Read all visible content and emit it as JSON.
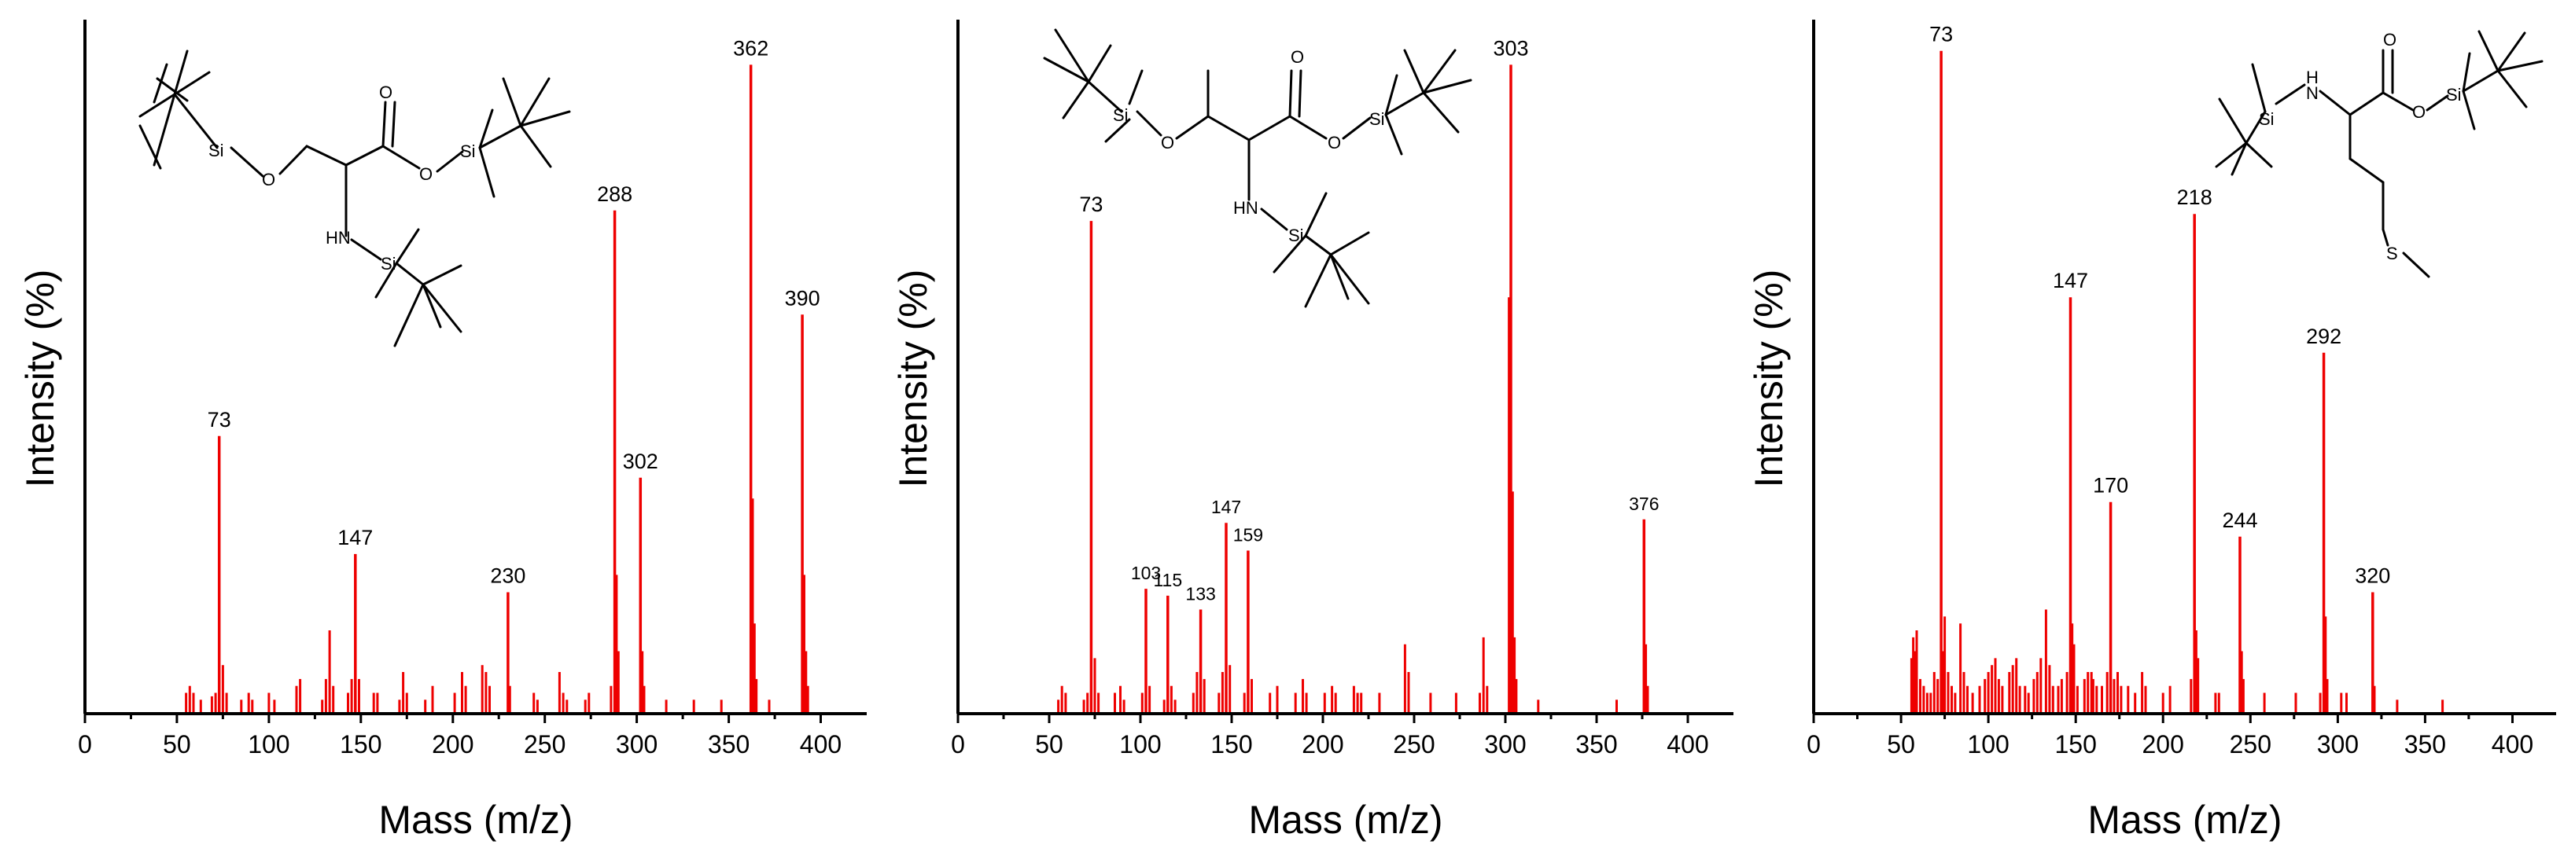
{
  "figure_title": "",
  "colors": {
    "spectrum": "#ee0000",
    "axis": "#000000"
  },
  "chart_data": [
    {
      "type": "bar",
      "title": "",
      "xlabel": "Mass (m/z)",
      "ylabel": "Intensity (%)",
      "xlim": [
        0,
        425
      ],
      "ylim": [
        0,
        100
      ],
      "x_ticks": [
        0,
        50,
        100,
        150,
        200,
        250,
        300,
        350,
        400
      ],
      "molecule_labels": [
        "Si",
        "O",
        "O",
        "Si",
        "O",
        "HN",
        "Si"
      ],
      "peaks": [
        {
          "mz": 73,
          "intensity": 40,
          "label": "73"
        },
        {
          "mz": 147,
          "intensity": 23,
          "label": "147"
        },
        {
          "mz": 230,
          "intensity": 17.5,
          "label": "230"
        },
        {
          "mz": 288,
          "intensity": 72.5,
          "label": "288"
        },
        {
          "mz": 302,
          "intensity": 34,
          "label": "302"
        },
        {
          "mz": 362,
          "intensity": 93.5,
          "label": "362"
        },
        {
          "mz": 390,
          "intensity": 57.5,
          "label": "390"
        }
      ],
      "minor_peaks": [
        [
          55,
          3
        ],
        [
          57,
          4
        ],
        [
          59,
          3
        ],
        [
          63,
          2
        ],
        [
          69,
          2.5
        ],
        [
          71,
          3
        ],
        [
          75,
          7
        ],
        [
          77,
          3
        ],
        [
          85,
          2
        ],
        [
          89,
          3
        ],
        [
          91,
          2
        ],
        [
          100,
          3
        ],
        [
          103,
          2
        ],
        [
          115,
          4
        ],
        [
          117,
          5
        ],
        [
          129,
          2
        ],
        [
          131,
          5
        ],
        [
          133,
          12
        ],
        [
          135,
          4
        ],
        [
          143,
          3
        ],
        [
          145,
          5
        ],
        [
          149,
          5
        ],
        [
          157,
          3
        ],
        [
          159,
          3
        ],
        [
          171,
          2
        ],
        [
          173,
          6
        ],
        [
          175,
          3
        ],
        [
          185,
          2
        ],
        [
          189,
          4
        ],
        [
          201,
          3
        ],
        [
          205,
          6
        ],
        [
          207,
          4
        ],
        [
          216,
          7
        ],
        [
          218,
          6
        ],
        [
          220,
          4
        ],
        [
          231,
          4
        ],
        [
          244,
          3
        ],
        [
          246,
          2
        ],
        [
          258,
          6
        ],
        [
          260,
          3
        ],
        [
          262,
          2
        ],
        [
          272,
          2
        ],
        [
          274,
          3
        ],
        [
          286,
          4
        ],
        [
          289,
          20
        ],
        [
          290,
          9
        ],
        [
          303,
          9
        ],
        [
          304,
          4
        ],
        [
          316,
          2
        ],
        [
          331,
          2
        ],
        [
          346,
          2
        ],
        [
          363,
          31
        ],
        [
          364,
          13
        ],
        [
          365,
          5
        ],
        [
          372,
          2
        ],
        [
          391,
          20
        ],
        [
          392,
          9
        ],
        [
          393,
          4
        ]
      ]
    },
    {
      "type": "bar",
      "title": "",
      "xlabel": "Mass (m/z)",
      "ylabel": "Intensity (%)",
      "xlim": [
        0,
        425
      ],
      "ylim": [
        0,
        100
      ],
      "x_ticks": [
        0,
        50,
        100,
        150,
        200,
        250,
        300,
        350,
        400
      ],
      "molecule_labels": [
        "Si",
        "O",
        "O",
        "O",
        "Si",
        "HN",
        "Si"
      ],
      "peaks": [
        {
          "mz": 73,
          "intensity": 71,
          "label": "73"
        },
        {
          "mz": 103,
          "intensity": 18,
          "label": "103"
        },
        {
          "mz": 115,
          "intensity": 17,
          "label": "115"
        },
        {
          "mz": 133,
          "intensity": 15,
          "label": "133"
        },
        {
          "mz": 147,
          "intensity": 27.5,
          "label": "147"
        },
        {
          "mz": 159,
          "intensity": 23.5,
          "label": "159"
        },
        {
          "mz": 303,
          "intensity": 93.5,
          "label": "303"
        },
        {
          "mz": 376,
          "intensity": 28,
          "label": "376"
        }
      ],
      "minor_peaks": [
        [
          55,
          2
        ],
        [
          57,
          4
        ],
        [
          59,
          3
        ],
        [
          69,
          2
        ],
        [
          71,
          3
        ],
        [
          75,
          8
        ],
        [
          77,
          3
        ],
        [
          86,
          3
        ],
        [
          89,
          4
        ],
        [
          91,
          2
        ],
        [
          101,
          3
        ],
        [
          105,
          4
        ],
        [
          113,
          2
        ],
        [
          117,
          4
        ],
        [
          119,
          2
        ],
        [
          129,
          3
        ],
        [
          131,
          6
        ],
        [
          135,
          5
        ],
        [
          143,
          3
        ],
        [
          145,
          6
        ],
        [
          149,
          7
        ],
        [
          157,
          3
        ],
        [
          161,
          5
        ],
        [
          171,
          3
        ],
        [
          175,
          4
        ],
        [
          185,
          3
        ],
        [
          189,
          5
        ],
        [
          191,
          3
        ],
        [
          201,
          3
        ],
        [
          205,
          4
        ],
        [
          207,
          3
        ],
        [
          217,
          4
        ],
        [
          219,
          3
        ],
        [
          221,
          3
        ],
        [
          231,
          3
        ],
        [
          245,
          10
        ],
        [
          247,
          6
        ],
        [
          259,
          3
        ],
        [
          273,
          3
        ],
        [
          286,
          3
        ],
        [
          288,
          11
        ],
        [
          290,
          4
        ],
        [
          302,
          60
        ],
        [
          304,
          32
        ],
        [
          305,
          11
        ],
        [
          306,
          5
        ],
        [
          318,
          2
        ],
        [
          361,
          2
        ],
        [
          377,
          10
        ],
        [
          378,
          4
        ]
      ]
    },
    {
      "type": "bar",
      "title": "",
      "xlabel": "Mass (m/z)",
      "ylabel": "Intensity (%)",
      "xlim": [
        0,
        425
      ],
      "ylim": [
        0,
        100
      ],
      "x_ticks": [
        0,
        50,
        100,
        150,
        200,
        250,
        300,
        350,
        400
      ],
      "molecule_labels": [
        "Si",
        "H",
        "N",
        "O",
        "O",
        "Si",
        "S"
      ],
      "peaks": [
        {
          "mz": 73,
          "intensity": 95.5,
          "label": "73"
        },
        {
          "mz": 147,
          "intensity": 60,
          "label": "147"
        },
        {
          "mz": 170,
          "intensity": 30.5,
          "label": "170"
        },
        {
          "mz": 218,
          "intensity": 72,
          "label": "218"
        },
        {
          "mz": 244,
          "intensity": 25.5,
          "label": "244"
        },
        {
          "mz": 292,
          "intensity": 52,
          "label": "292"
        },
        {
          "mz": 320,
          "intensity": 17.5,
          "label": "320"
        }
      ],
      "minor_peaks": [
        [
          56,
          8
        ],
        [
          57,
          11
        ],
        [
          58,
          9
        ],
        [
          59,
          12
        ],
        [
          61,
          5
        ],
        [
          63,
          4
        ],
        [
          65,
          3
        ],
        [
          67,
          3
        ],
        [
          69,
          6
        ],
        [
          71,
          5
        ],
        [
          74,
          9
        ],
        [
          75,
          14
        ],
        [
          77,
          6
        ],
        [
          79,
          4
        ],
        [
          81,
          3
        ],
        [
          84,
          13
        ],
        [
          86,
          6
        ],
        [
          88,
          4
        ],
        [
          91,
          3
        ],
        [
          95,
          4
        ],
        [
          98,
          5
        ],
        [
          100,
          6
        ],
        [
          102,
          7
        ],
        [
          104,
          8
        ],
        [
          106,
          5
        ],
        [
          108,
          4
        ],
        [
          112,
          6
        ],
        [
          114,
          7
        ],
        [
          116,
          8
        ],
        [
          118,
          4
        ],
        [
          121,
          4
        ],
        [
          123,
          3
        ],
        [
          126,
          5
        ],
        [
          128,
          6
        ],
        [
          130,
          8
        ],
        [
          133,
          15
        ],
        [
          135,
          7
        ],
        [
          137,
          4
        ],
        [
          140,
          4
        ],
        [
          142,
          5
        ],
        [
          145,
          6
        ],
        [
          148,
          13
        ],
        [
          149,
          10
        ],
        [
          151,
          4
        ],
        [
          155,
          5
        ],
        [
          157,
          6
        ],
        [
          159,
          6
        ],
        [
          160,
          5
        ],
        [
          162,
          4
        ],
        [
          165,
          4
        ],
        [
          168,
          6
        ],
        [
          172,
          5
        ],
        [
          174,
          6
        ],
        [
          176,
          4
        ],
        [
          180,
          4
        ],
        [
          184,
          3
        ],
        [
          188,
          6
        ],
        [
          190,
          4
        ],
        [
          200,
          3
        ],
        [
          204,
          4
        ],
        [
          216,
          5
        ],
        [
          219,
          12
        ],
        [
          220,
          8
        ],
        [
          230,
          3
        ],
        [
          232,
          3
        ],
        [
          245,
          9
        ],
        [
          246,
          5
        ],
        [
          258,
          3
        ],
        [
          276,
          3
        ],
        [
          290,
          3
        ],
        [
          293,
          14
        ],
        [
          294,
          5
        ],
        [
          302,
          3
        ],
        [
          305,
          3
        ],
        [
          321,
          4
        ],
        [
          334,
          2
        ],
        [
          360,
          2
        ]
      ]
    }
  ]
}
